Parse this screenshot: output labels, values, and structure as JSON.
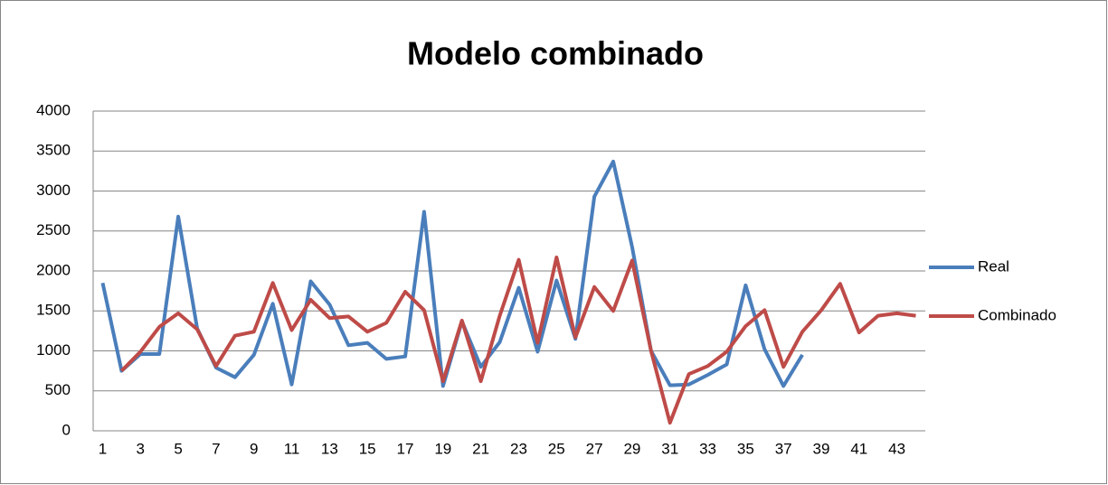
{
  "chart_data": {
    "type": "line",
    "title": "Modelo combinado",
    "categories": [
      "1",
      null,
      "3",
      null,
      "5",
      null,
      "7",
      null,
      "9",
      null,
      "11",
      null,
      "13",
      null,
      "15",
      null,
      "17",
      null,
      "19",
      null,
      "21",
      null,
      "23",
      null,
      "25",
      null,
      "27",
      null,
      "29",
      null,
      "31",
      null,
      "33",
      null,
      "35",
      null,
      "37",
      null,
      "39",
      null,
      "41",
      null,
      "43",
      null
    ],
    "series": [
      {
        "name": "Real",
        "color": "#4a7ebb",
        "values": [
          1850,
          750,
          960,
          960,
          2680,
          1280,
          790,
          670,
          950,
          1590,
          580,
          1870,
          1580,
          1070,
          1100,
          900,
          930,
          2740,
          560,
          1370,
          800,
          1110,
          1790,
          990,
          1880,
          1150,
          2930,
          3370,
          2300,
          1000,
          570,
          580,
          700,
          830,
          1820,
          1020,
          560,
          950,
          null,
          null,
          null,
          null,
          null,
          null
        ]
      },
      {
        "name": "Combinado",
        "color": "#be4b48",
        "values": [
          null,
          750,
          990,
          1300,
          1470,
          1270,
          810,
          1190,
          1240,
          1850,
          1260,
          1640,
          1410,
          1430,
          1240,
          1350,
          1740,
          1510,
          620,
          1380,
          620,
          1440,
          2140,
          1100,
          2170,
          1170,
          1800,
          1500,
          2130,
          1000,
          100,
          710,
          810,
          990,
          1310,
          1510,
          800,
          1240,
          1510,
          1840,
          1230,
          1440,
          1470,
          1440
        ]
      }
    ],
    "ylim": [
      0,
      4000
    ],
    "yticks": [
      0,
      500,
      1000,
      1500,
      2000,
      2500,
      3000,
      3500,
      4000
    ],
    "grid": true,
    "legend": "right"
  }
}
